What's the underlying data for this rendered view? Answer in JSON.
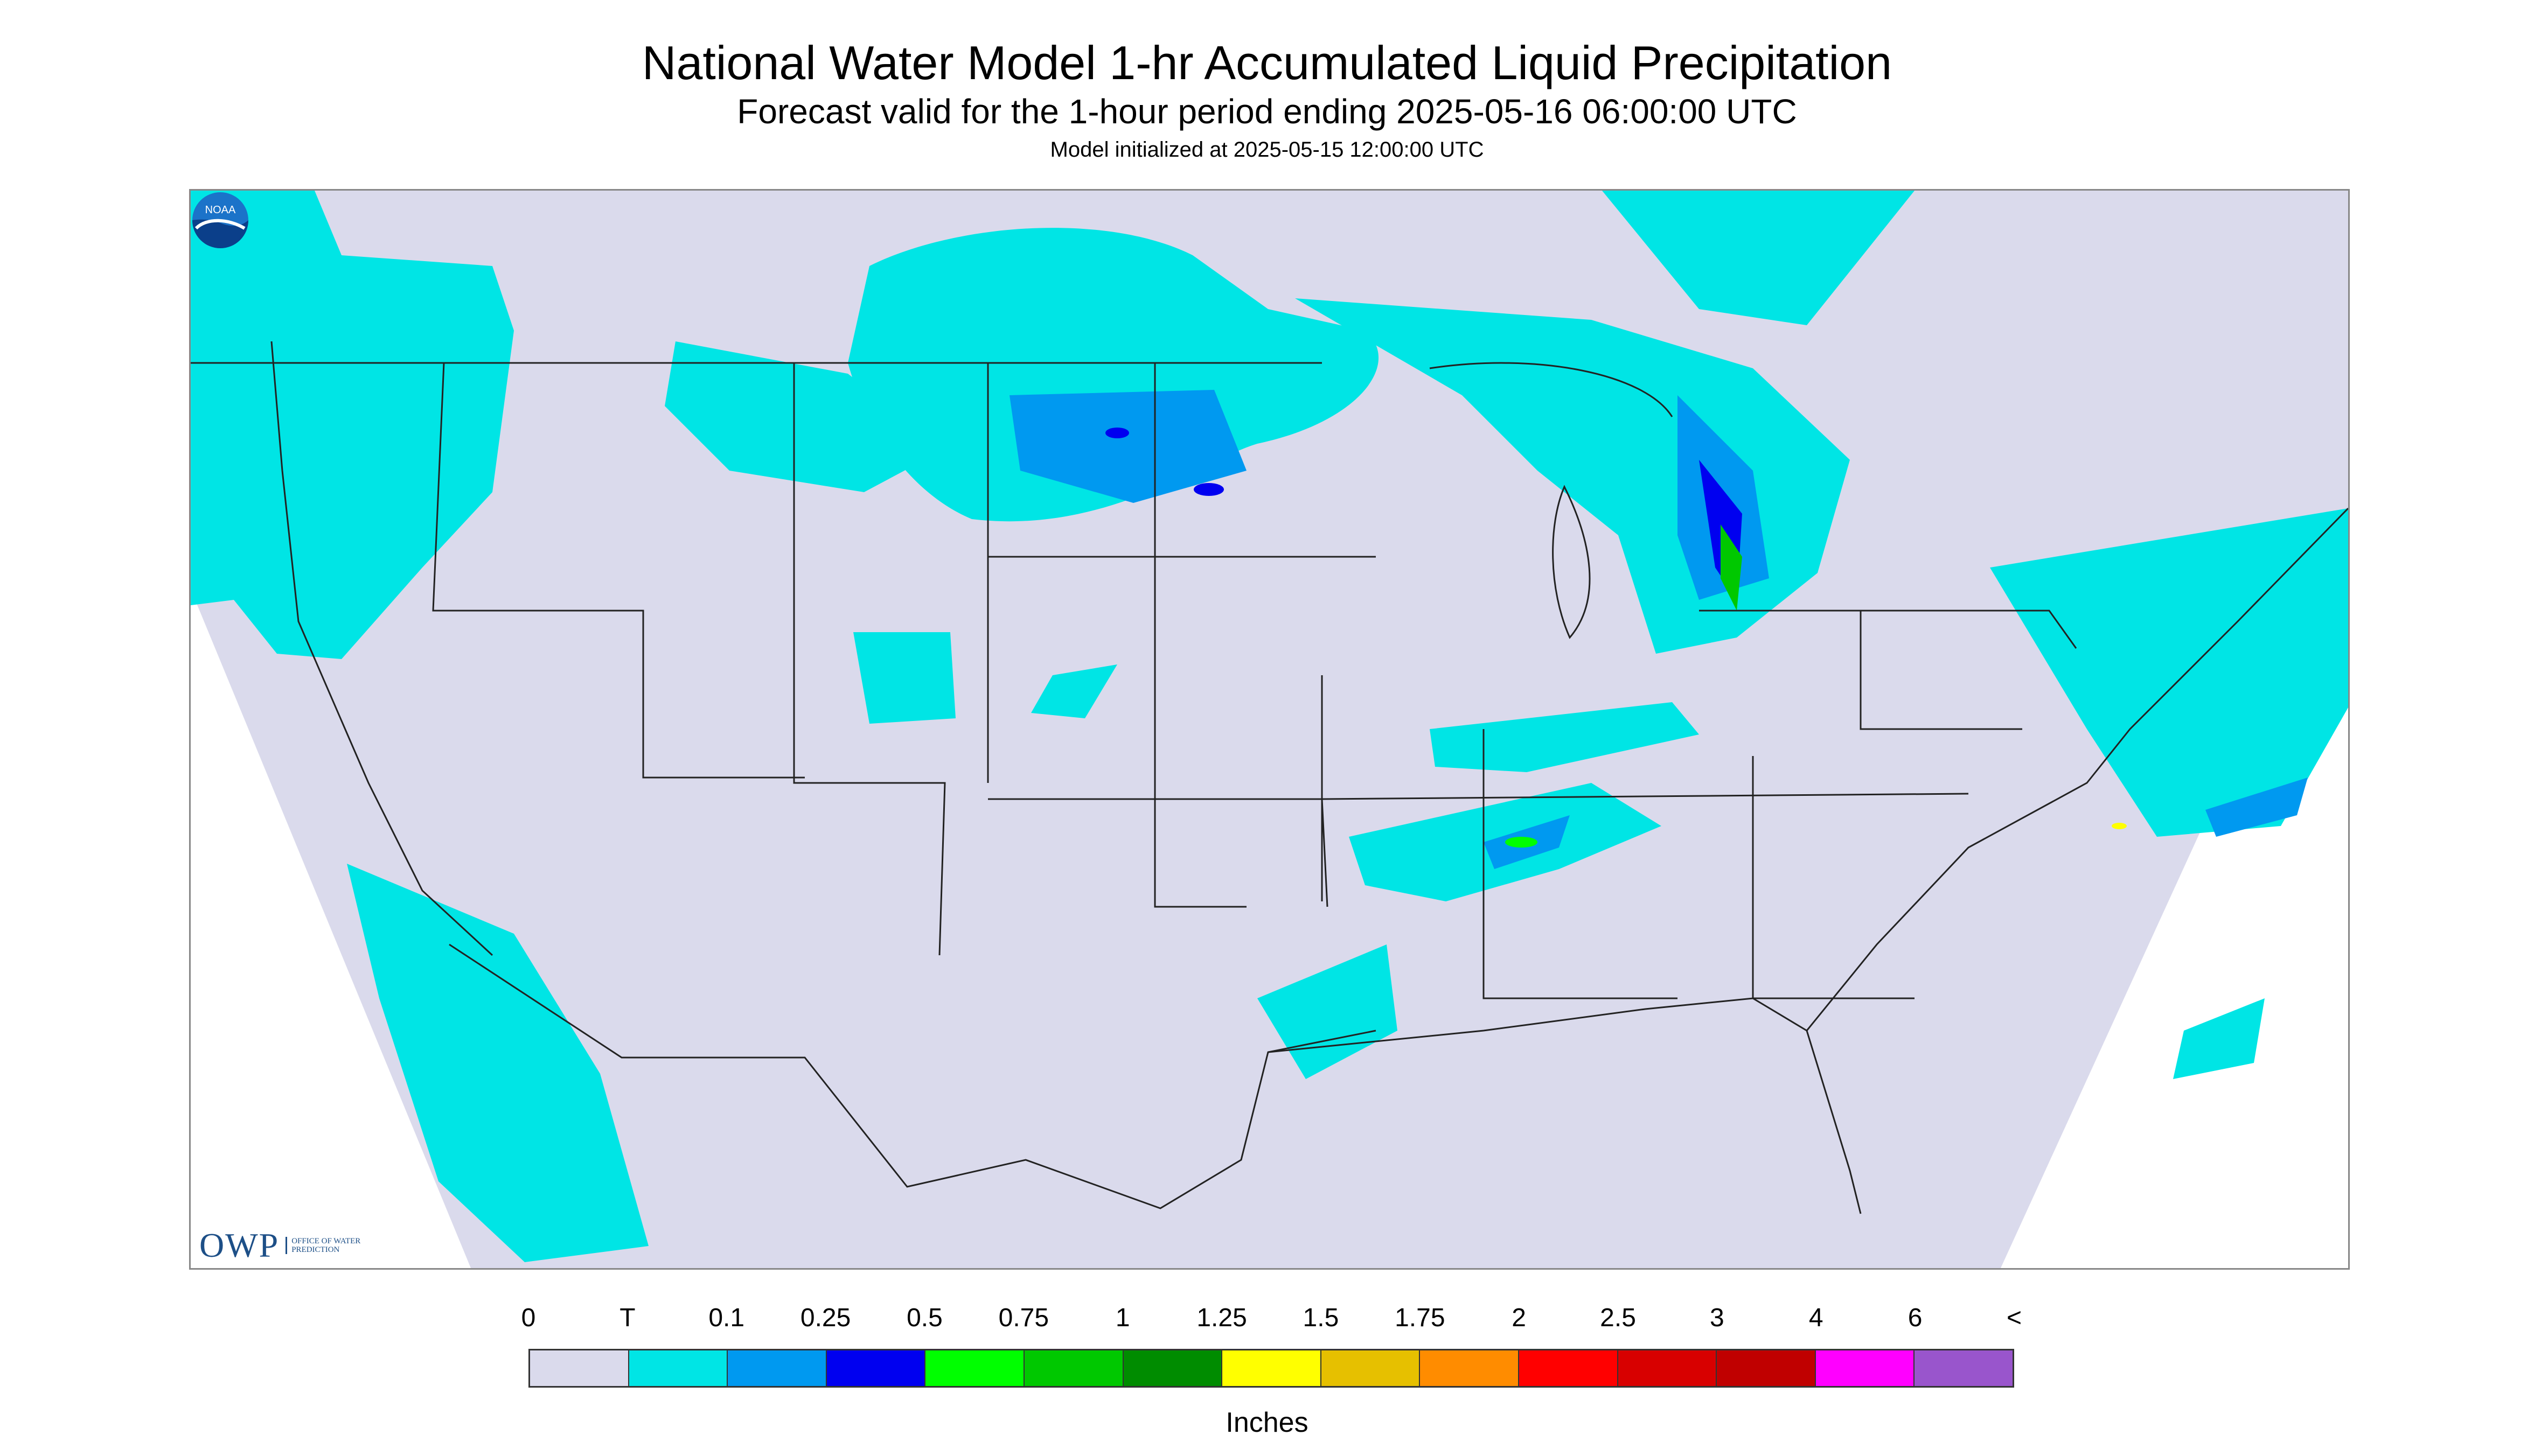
{
  "header": {
    "title": "National Water Model 1-hr Accumulated Liquid Precipitation",
    "subtitle": "Forecast valid for the 1-hour period ending 2025-05-16 06:00:00 UTC",
    "init_line": "Model initialized at 2025-05-15 12:00:00 UTC"
  },
  "logos": {
    "owp_mark": "OWP",
    "owp_text": "OFFICE OF WATER PREDICTION",
    "noaa_text": "NOAA"
  },
  "map": {
    "domain": "CONUS",
    "background_color": "#dadaec",
    "no_data_color": "#ffffff"
  },
  "legend": {
    "units": "Inches",
    "labels": [
      "0",
      "T",
      "0.1",
      "0.25",
      "0.5",
      "0.75",
      "1",
      "1.25",
      "1.5",
      "1.75",
      "2",
      "2.5",
      "3",
      "4",
      "6",
      "<"
    ],
    "colors": [
      "#dadaec",
      "#00e5e5",
      "#0099f0",
      "#0000f0",
      "#00ff00",
      "#00c800",
      "#008c00",
      "#ffff00",
      "#e6c000",
      "#ff8c00",
      "#ff0000",
      "#d80000",
      "#c00000",
      "#ff00ff",
      "#9955cc"
    ]
  }
}
